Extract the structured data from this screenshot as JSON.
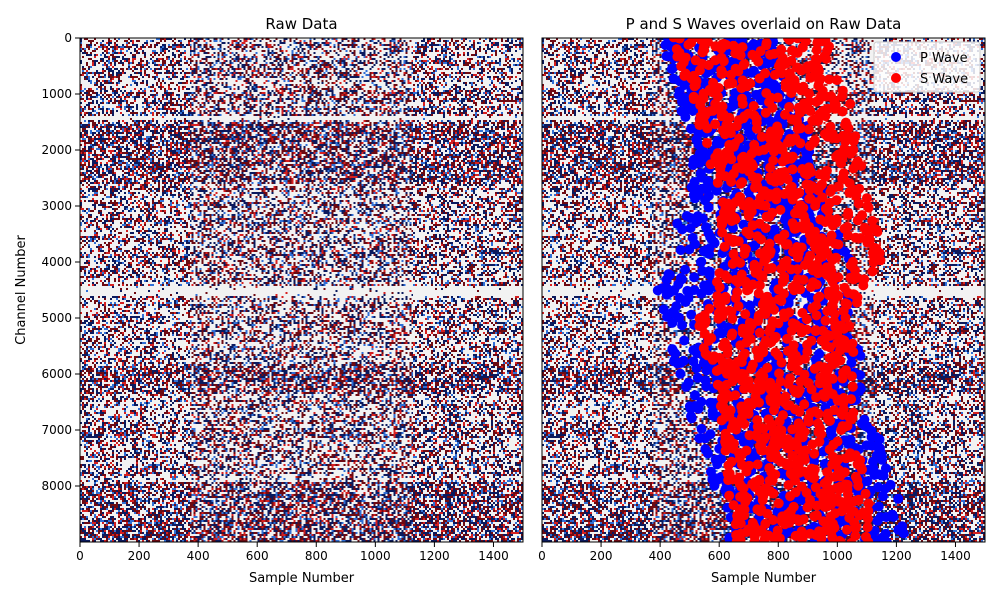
{
  "chart_data": [
    {
      "type": "heatmap",
      "title": "Raw Data",
      "xlabel": "Sample Number",
      "ylabel": "Channel Number",
      "xlim": [
        0,
        1500
      ],
      "ylim": [
        9000,
        0
      ],
      "x_ticks": [
        "0",
        "200",
        "400",
        "600",
        "800",
        "1000",
        "1200",
        "1400"
      ],
      "y_ticks": [
        "0",
        "1000",
        "2000",
        "3000",
        "4000",
        "5000",
        "6000",
        "7000",
        "8000"
      ],
      "colormap": [
        "#0b1a5e",
        "#2f6fd6",
        "#f2f2f2",
        "#d62020",
        "#6e0a12"
      ]
    },
    {
      "type": "scatter",
      "title": "P and S Waves overlaid on Raw Data",
      "xlabel": "Sample Number",
      "ylabel": "",
      "xlim": [
        0,
        1500
      ],
      "ylim": [
        9000,
        0
      ],
      "x_ticks": [
        "0",
        "200",
        "400",
        "600",
        "800",
        "1000",
        "1200",
        "1400"
      ],
      "legend_position": "top-right",
      "series": [
        {
          "name": "P Wave",
          "color": "#0000ff",
          "band": [
            [
              0,
              410,
              800
            ],
            [
              500,
              420,
              810
            ],
            [
              1000,
              460,
              850
            ],
            [
              1500,
              480,
              900
            ],
            [
              2000,
              500,
              930
            ],
            [
              2500,
              520,
              960
            ],
            [
              3000,
              440,
              990
            ],
            [
              3500,
              430,
              1020
            ],
            [
              4000,
              460,
              1050
            ],
            [
              4500,
              390,
              1060
            ],
            [
              5000,
              420,
              1060
            ],
            [
              5500,
              440,
              1080
            ],
            [
              6000,
              450,
              1090
            ],
            [
              6500,
              480,
              1110
            ],
            [
              7000,
              520,
              1140
            ],
            [
              7500,
              560,
              1170
            ],
            [
              8000,
              580,
              1200
            ],
            [
              8500,
              600,
              1230
            ],
            [
              9000,
              620,
              1260
            ]
          ]
        },
        {
          "name": "S Wave",
          "color": "#ff0000",
          "band": [
            [
              0,
              440,
              980
            ],
            [
              500,
              460,
              1000
            ],
            [
              1000,
              500,
              1040
            ],
            [
              1500,
              520,
              1060
            ],
            [
              2000,
              560,
              1070
            ],
            [
              2500,
              580,
              1090
            ],
            [
              3000,
              600,
              1110
            ],
            [
              3500,
              610,
              1140
            ],
            [
              4000,
              620,
              1150
            ],
            [
              4500,
              560,
              1080
            ],
            [
              5000,
              520,
              1070
            ],
            [
              5500,
              540,
              1070
            ],
            [
              6000,
              580,
              1060
            ],
            [
              6500,
              600,
              1050
            ],
            [
              7000,
              610,
              1060
            ],
            [
              7500,
              620,
              1080
            ],
            [
              8000,
              620,
              1100
            ],
            [
              8500,
              620,
              1110
            ],
            [
              9000,
              620,
              1110
            ]
          ]
        }
      ]
    }
  ]
}
